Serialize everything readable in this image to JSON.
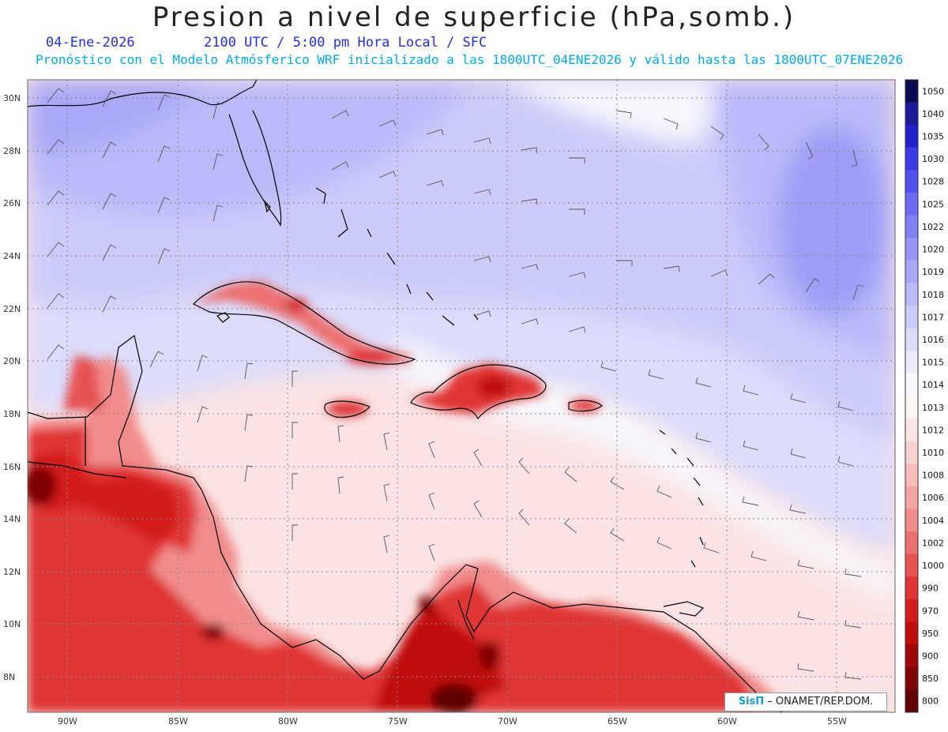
{
  "header": {
    "title": "Presion a nivel de superficie (hPa,somb.)",
    "date": "04-Ene-2026",
    "time": "2100 UTC / 5:00 pm Hora Local / SFC",
    "forecast": "Pronóstico con el Modelo Atmósferico WRF inicializado a las 1800UTC_04ENE2026 y válido hasta las  1800UTC_07ENE2026"
  },
  "lat_labels": [
    "30N",
    "28N",
    "26N",
    "24N",
    "22N",
    "20N",
    "18N",
    "16N",
    "14N",
    "12N",
    "10N",
    "8N"
  ],
  "lon_labels": [
    "90W",
    "85W",
    "80W",
    "75W",
    "70W",
    "65W",
    "60W",
    "55W"
  ],
  "colorbar": {
    "levels": [
      "1050",
      "1040",
      "1035",
      "1030",
      "1028",
      "1025",
      "1022",
      "1020",
      "1019",
      "1018",
      "1017",
      "1016",
      "1015",
      "1014",
      "1013",
      "1012",
      "1010",
      "1008",
      "1006",
      "1004",
      "1002",
      "1000",
      "990",
      "970",
      "950",
      "900",
      "850",
      "800"
    ],
    "colors": [
      "#0b0b55",
      "#1a1a9a",
      "#2222cc",
      "#3a3ae6",
      "#5252ee",
      "#6a6af2",
      "#8080f5",
      "#9595f7",
      "#a8a8f8",
      "#babaf9",
      "#cbcbfa",
      "#dcdcfb",
      "#ebebfc",
      "#f7f7fd",
      "#fff4f4",
      "#fde4e4",
      "#fbd2d2",
      "#f8bcbc",
      "#f5a4a4",
      "#f18c8c",
      "#ec7070",
      "#e65252",
      "#e03434",
      "#d41c1c",
      "#c00e0e",
      "#a00808",
      "#800404",
      "#600000"
    ]
  },
  "colors": {
    "land_line": "#000000",
    "barb": "#555555",
    "grid": "#888888"
  },
  "credit": {
    "logo": "SisΠ",
    "text": " – ONAMET/REP.DOM."
  }
}
